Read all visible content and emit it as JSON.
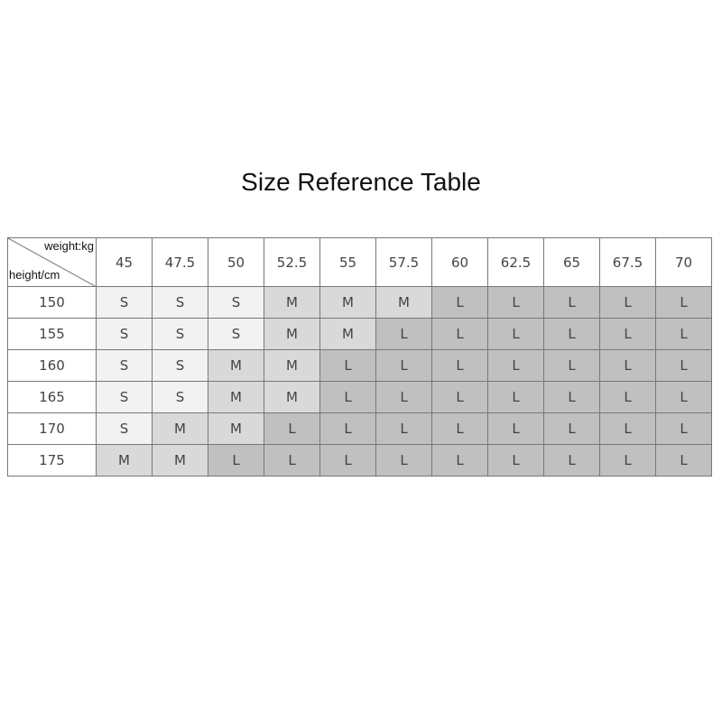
{
  "title": "Size Reference Table",
  "table": {
    "corner_top": "weight:kg",
    "corner_bottom": "height/cm",
    "weights": [
      "45",
      "47.5",
      "50",
      "52.5",
      "55",
      "57.5",
      "60",
      "62.5",
      "65",
      "67.5",
      "70"
    ],
    "rows": [
      {
        "height": "150",
        "sizes": [
          "S",
          "S",
          "S",
          "M",
          "M",
          "M",
          "L",
          "L",
          "L",
          "L",
          "L"
        ]
      },
      {
        "height": "155",
        "sizes": [
          "S",
          "S",
          "S",
          "M",
          "M",
          "L",
          "L",
          "L",
          "L",
          "L",
          "L"
        ]
      },
      {
        "height": "160",
        "sizes": [
          "S",
          "S",
          "M",
          "M",
          "L",
          "L",
          "L",
          "L",
          "L",
          "L",
          "L"
        ]
      },
      {
        "height": "165",
        "sizes": [
          "S",
          "S",
          "M",
          "M",
          "L",
          "L",
          "L",
          "L",
          "L",
          "L",
          "L"
        ]
      },
      {
        "height": "170",
        "sizes": [
          "S",
          "M",
          "M",
          "L",
          "L",
          "L",
          "L",
          "L",
          "L",
          "L",
          "L"
        ]
      },
      {
        "height": "175",
        "sizes": [
          "M",
          "M",
          "L",
          "L",
          "L",
          "L",
          "L",
          "L",
          "L",
          "L",
          "L"
        ]
      }
    ]
  },
  "colors": {
    "S": "#f2f2f2",
    "M": "#d9d9d9",
    "L": "#c0c0c0"
  }
}
